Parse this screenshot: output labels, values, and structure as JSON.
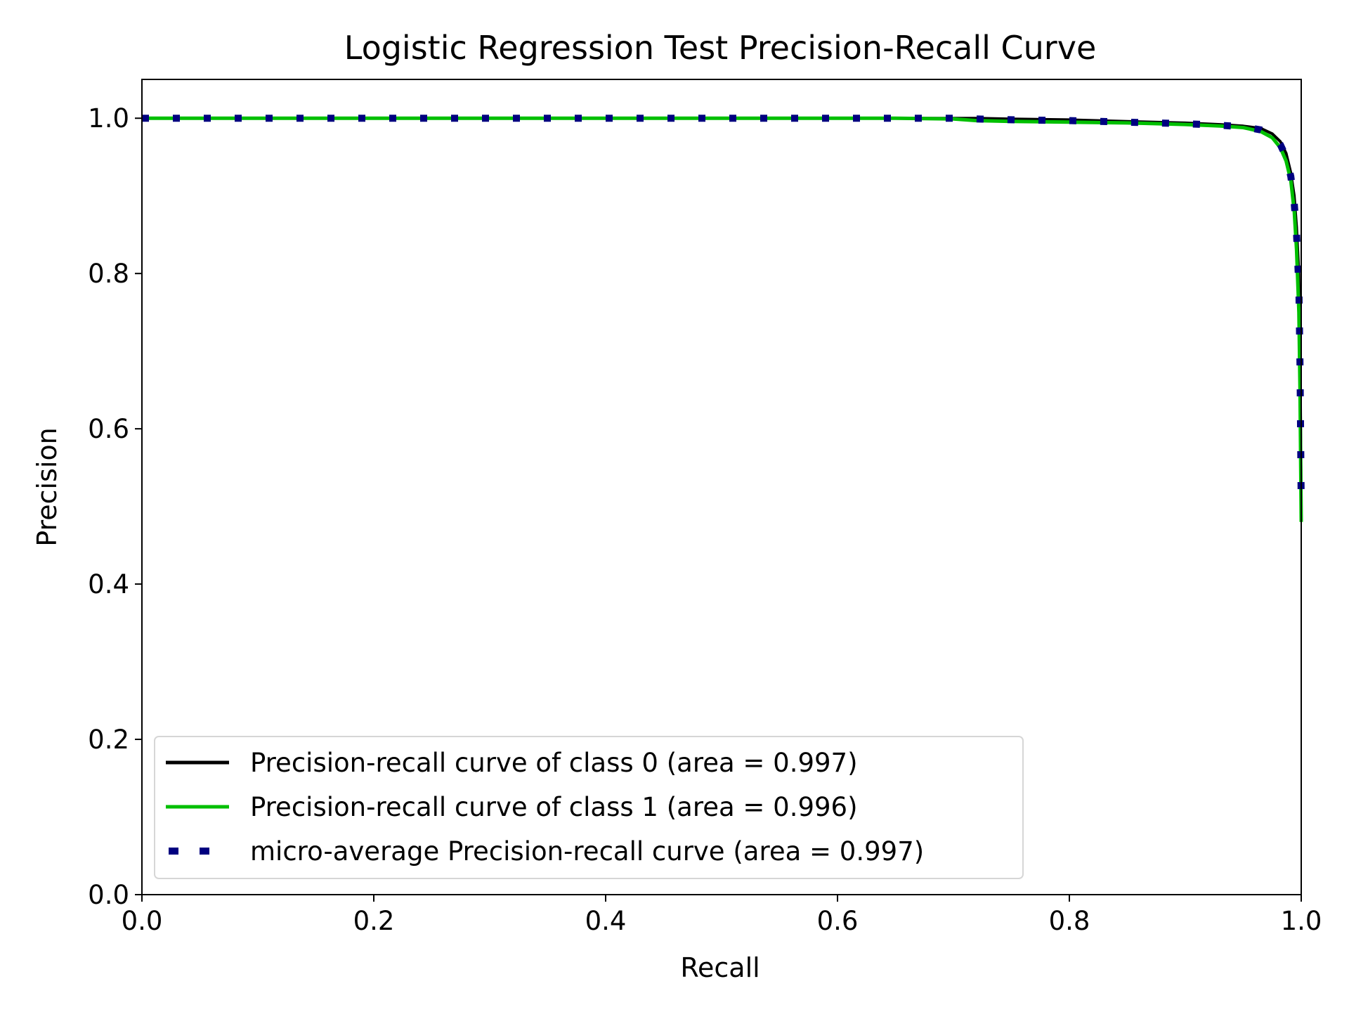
{
  "chart_data": {
    "type": "line",
    "title": "Logistic Regression Test Precision-Recall Curve",
    "xlabel": "Recall",
    "ylabel": "Precision",
    "xlim": [
      0.0,
      1.0
    ],
    "ylim": [
      0.0,
      1.05
    ],
    "xticks": [
      "0.0",
      "0.2",
      "0.4",
      "0.6",
      "0.8",
      "1.0"
    ],
    "yticks": [
      "0.0",
      "0.2",
      "0.4",
      "0.6",
      "0.8",
      "1.0"
    ],
    "grid": false,
    "legend_position": "lower-left",
    "series": [
      {
        "name": "Precision-recall curve of class 0 (area = 0.997)",
        "color": "#000000",
        "style": "solid",
        "x": [
          0.0,
          0.1,
          0.2,
          0.3,
          0.4,
          0.5,
          0.6,
          0.65,
          0.7,
          0.72,
          0.75,
          0.8,
          0.85,
          0.9,
          0.93,
          0.95,
          0.965,
          0.975,
          0.982,
          0.987,
          0.991,
          0.994,
          0.996,
          0.998,
          0.999,
          1.0
        ],
        "y": [
          1.0,
          1.0,
          1.0,
          1.0,
          1.0,
          1.0,
          1.0,
          1.0,
          1.0,
          1.0,
          0.999,
          0.998,
          0.996,
          0.994,
          0.992,
          0.99,
          0.987,
          0.98,
          0.97,
          0.955,
          0.93,
          0.9,
          0.86,
          0.8,
          0.7,
          0.5
        ]
      },
      {
        "name": "Precision-recall curve of class 1 (area = 0.996)",
        "color": "#00bf00",
        "style": "solid",
        "x": [
          0.0,
          0.1,
          0.2,
          0.3,
          0.4,
          0.5,
          0.6,
          0.65,
          0.7,
          0.72,
          0.75,
          0.8,
          0.85,
          0.9,
          0.93,
          0.95,
          0.965,
          0.975,
          0.982,
          0.987,
          0.991,
          0.994,
          0.996,
          0.998,
          0.999,
          1.0
        ],
        "y": [
          1.0,
          1.0,
          1.0,
          1.0,
          1.0,
          1.0,
          1.0,
          1.0,
          0.999,
          0.997,
          0.996,
          0.995,
          0.994,
          0.992,
          0.99,
          0.988,
          0.983,
          0.975,
          0.962,
          0.945,
          0.92,
          0.88,
          0.83,
          0.75,
          0.65,
          0.48
        ]
      },
      {
        "name": "micro-average Precision-recall curve (area = 0.997)",
        "color": "#000080",
        "style": "dotted",
        "x": [
          0.0,
          0.1,
          0.2,
          0.3,
          0.4,
          0.5,
          0.6,
          0.65,
          0.7,
          0.72,
          0.75,
          0.8,
          0.85,
          0.9,
          0.93,
          0.95,
          0.965,
          0.975,
          0.982,
          0.987,
          0.991,
          0.994,
          0.996,
          0.998,
          0.999,
          1.0
        ],
        "y": [
          1.0,
          1.0,
          1.0,
          1.0,
          1.0,
          1.0,
          1.0,
          1.0,
          1.0,
          0.999,
          0.998,
          0.997,
          0.995,
          0.993,
          0.991,
          0.989,
          0.985,
          0.978,
          0.966,
          0.95,
          0.925,
          0.89,
          0.85,
          0.78,
          0.68,
          0.5
        ]
      }
    ]
  }
}
